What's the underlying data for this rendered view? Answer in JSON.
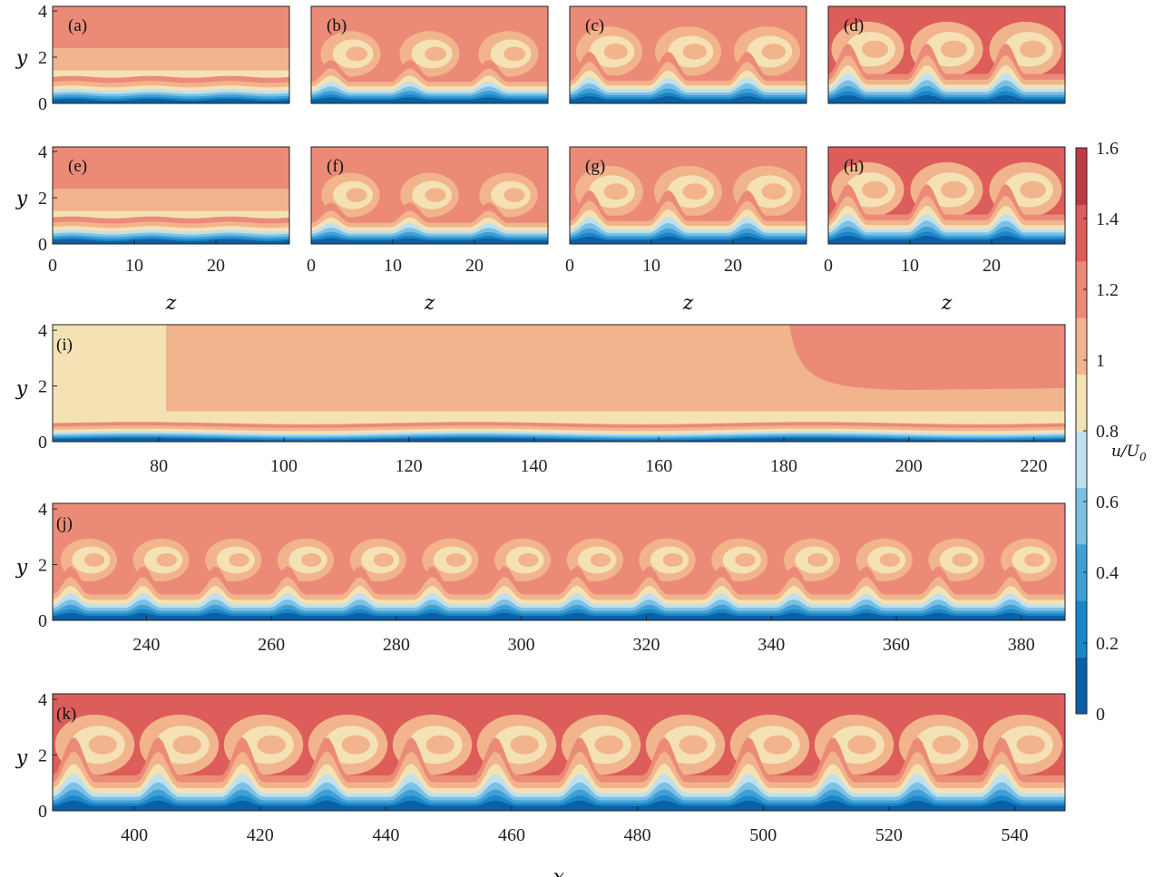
{
  "chart_data": {
    "type": "heatmap",
    "colorbar": {
      "label": "u/U",
      "label_sub": "0",
      "range": [
        0,
        1.6
      ],
      "ticks": [
        "0",
        "0.2",
        "0.4",
        "0.6",
        "0.8",
        "1",
        "1.2",
        "1.4",
        "1.6"
      ],
      "colors": [
        "#0a5fa5",
        "#1a85c8",
        "#3fa0d6",
        "#7cc0e4",
        "#bfe0ee",
        "#f4e2b4",
        "#f2b48c",
        "#ec8a78",
        "#dc5d5a",
        "#bd3a45"
      ]
    },
    "panels_top": [
      {
        "label": "(a)",
        "xlabel": "",
        "xticks": [],
        "yticks": [
          "0",
          "2",
          "4"
        ],
        "ylabel": "y",
        "pattern": "waves",
        "amp": 0.0,
        "thick": 0.0,
        "bg": "#ec8a78"
      },
      {
        "label": "(b)",
        "xlabel": "",
        "xticks": [],
        "yticks": [],
        "ylabel": "",
        "pattern": "curls",
        "amp": 0.5,
        "thick": 0.6,
        "bg": "#ec8a78"
      },
      {
        "label": "(c)",
        "xlabel": "",
        "xticks": [],
        "yticks": [],
        "ylabel": "",
        "pattern": "curls",
        "amp": 0.7,
        "thick": 0.8,
        "bg": "#ec8a78"
      },
      {
        "label": "(d)",
        "xlabel": "",
        "xticks": [],
        "yticks": [],
        "ylabel": "",
        "pattern": "curls",
        "amp": 0.9,
        "thick": 1.0,
        "bg": "#dc5d5a"
      }
    ],
    "panels_mid": [
      {
        "label": "(e)",
        "xlabel": "z",
        "xticks": [
          "0",
          "10",
          "20"
        ],
        "yticks": [
          "0",
          "2",
          "4"
        ],
        "ylabel": "y",
        "pattern": "waves",
        "amp": 0.0,
        "thick": 0.0,
        "bg": "#ec8a78"
      },
      {
        "label": "(f)",
        "xlabel": "z",
        "xticks": [
          "0",
          "10",
          "20"
        ],
        "yticks": [],
        "ylabel": "",
        "pattern": "curls",
        "amp": 0.45,
        "thick": 0.55,
        "bg": "#ec8a78"
      },
      {
        "label": "(g)",
        "xlabel": "z",
        "xticks": [
          "0",
          "10",
          "20"
        ],
        "yticks": [],
        "ylabel": "",
        "pattern": "curls",
        "amp": 0.75,
        "thick": 0.85,
        "bg": "#ec8a78"
      },
      {
        "label": "(h)",
        "xlabel": "z",
        "xticks": [
          "0",
          "10",
          "20"
        ],
        "yticks": [],
        "ylabel": "",
        "pattern": "curls",
        "amp": 0.9,
        "thick": 1.0,
        "bg": "#dc5d5a"
      }
    ],
    "z_range": [
      0,
      29
    ],
    "panels_wide": [
      {
        "label": "(i)",
        "xlabel": "",
        "xlim": [
          63,
          225
        ],
        "xticks": [
          80,
          100,
          120,
          140,
          160,
          180,
          200,
          220
        ],
        "yticks": [
          "0",
          "2",
          "4"
        ],
        "ylabel": "y"
      },
      {
        "label": "(j)",
        "xlabel": "",
        "xlim": [
          225,
          387
        ],
        "xticks": [
          240,
          260,
          280,
          300,
          320,
          340,
          360,
          380
        ],
        "yticks": [
          "0",
          "2",
          "4"
        ],
        "ylabel": "y"
      },
      {
        "label": "(k)",
        "xlabel": "x",
        "xlim": [
          387,
          548
        ],
        "xticks": [
          400,
          420,
          440,
          460,
          480,
          500,
          520,
          540
        ],
        "yticks": [
          "0",
          "2",
          "4"
        ],
        "ylabel": "y"
      }
    ],
    "y_range": [
      0,
      4.2
    ]
  }
}
